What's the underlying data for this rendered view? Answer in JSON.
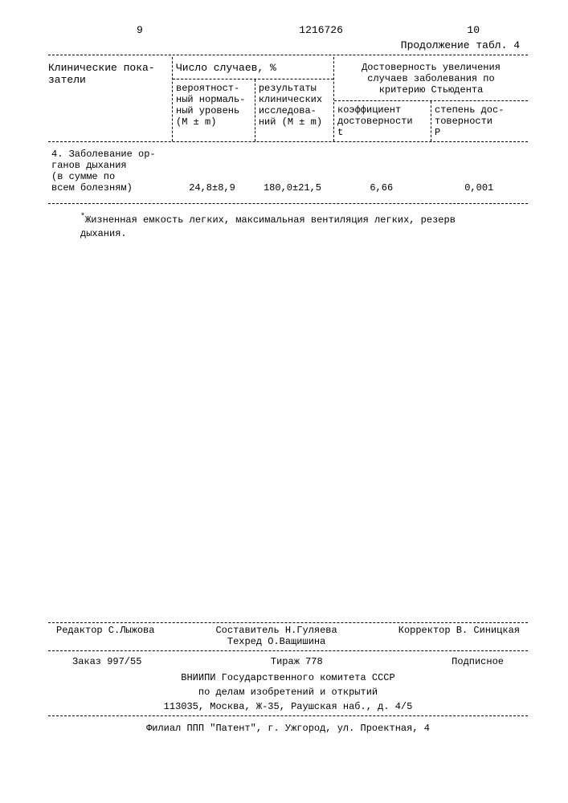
{
  "header": {
    "pageLeft": "9",
    "docNumber": "1216726",
    "pageRight": "10",
    "continuation": "Продолжение табл. 4"
  },
  "table": {
    "col1": "Клинические пока-\nзатели",
    "col2_top": "Число случаев, %",
    "col2_prob": "вероятност-\nный нормаль-\nный уровень\n(M ± m)",
    "col2_res": "результаты\nклинических\nисследова-\nний (M ± m)",
    "col3_top": "Достоверность увеличения\nслучаев заболевания по\nкритерию Стьюдента",
    "col3_coef": "коэффициент\nдостоверности\nt",
    "col3_deg": "степень дос-\nтоверности\nP",
    "row": {
      "clinical": "4. Заболевание ор-\nганов дыхания\n(в сумме по\nвсем болезням)",
      "prob": "24,8±8,9",
      "res": "180,0±21,5",
      "coef": "6,66",
      "deg": "0,001"
    }
  },
  "footnote": "Жизненная емкость легких, максимальная вентиляция легких, резерв\nдыхания.",
  "footer": {
    "compiler": "Составитель Н.Гуляева",
    "editor": "Редактор С.Лыжова",
    "techred": "Техред О.Ващишина",
    "corrector": "Корректор В. Синицкая",
    "order": "Заказ 997/55",
    "tirage": "Тираж 778",
    "subscript": "Подписное",
    "org1": "ВНИИПИ Государственного комитета СССР",
    "org2": "по делам изобретений и открытий",
    "address1": "113035, Москва, Ж-35, Раушская наб., д. 4/5",
    "branch": "Филиал ППП \"Патент\", г. Ужгород, ул. Проектная, 4"
  }
}
